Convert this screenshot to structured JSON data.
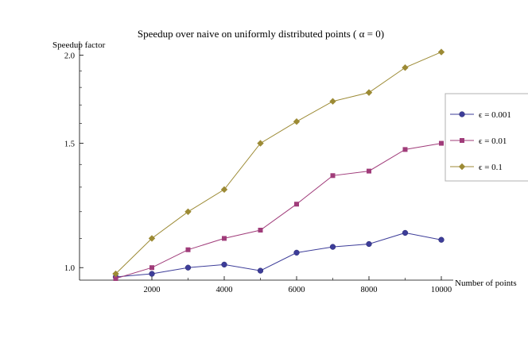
{
  "chart_data": {
    "type": "line",
    "title": "Speedup over naive on uniformly distributed points ( α = 0)",
    "xlabel": "Number of points",
    "ylabel": "Speedup factor",
    "xlim": [
      0,
      10000
    ],
    "ylim": [
      0.96,
      2.06
    ],
    "x_scale": "linear",
    "y_scale": "log",
    "x_ticks": [
      2000,
      4000,
      6000,
      8000,
      10000
    ],
    "x_tick_labels": [
      "2000",
      "4000",
      "6000",
      "8000",
      "10000"
    ],
    "y_ticks": [
      1.0,
      1.5,
      2.0
    ],
    "y_tick_labels": [
      "1.0",
      "1.5",
      "2.0"
    ],
    "grid": false,
    "legend_position": "right",
    "x": [
      1000,
      2000,
      3000,
      4000,
      5000,
      6000,
      7000,
      8000,
      9000,
      10000
    ],
    "series": [
      {
        "name": "ϵ = 0.001",
        "marker": "circle",
        "color": "#3d3d99",
        "values": [
          0.97,
          0.98,
          1.0,
          1.01,
          0.99,
          1.05,
          1.07,
          1.08,
          1.12,
          1.095
        ]
      },
      {
        "name": "ϵ = 0.01",
        "marker": "square",
        "color": "#a03c7a",
        "values": [
          0.965,
          1.0,
          1.06,
          1.1,
          1.13,
          1.23,
          1.35,
          1.37,
          1.47,
          1.5
        ]
      },
      {
        "name": "ϵ = 0.1",
        "marker": "diamond",
        "color": "#9c8a34",
        "values": [
          0.98,
          1.1,
          1.2,
          1.29,
          1.5,
          1.61,
          1.72,
          1.77,
          1.92,
          2.02
        ]
      }
    ]
  }
}
